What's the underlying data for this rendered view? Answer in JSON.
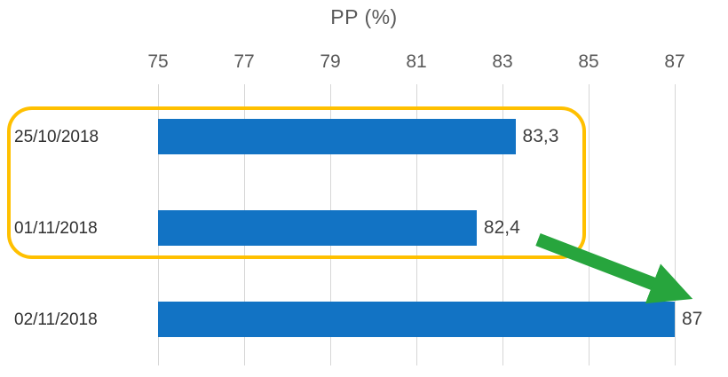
{
  "chart_data": {
    "type": "bar",
    "orientation": "horizontal",
    "title": "PP (%)",
    "categories": [
      "25/10/2018",
      "01/11/2018",
      "02/11/2018"
    ],
    "values": [
      83.3,
      82.4,
      87
    ],
    "value_labels": [
      "83,3",
      "82,4",
      "87"
    ],
    "xlim": [
      75,
      87
    ],
    "x_ticks": [
      75,
      77,
      79,
      81,
      83,
      85,
      87
    ],
    "grid": true,
    "legend": "none",
    "axis_position": "top",
    "bar_color": "#1273C4",
    "text_color": "#595959",
    "annotations": {
      "highlight_box": {
        "rows": [
          "25/10/2018",
          "01/11/2018"
        ],
        "color": "#FFC000"
      },
      "arrow": {
        "from_row": "01/11/2018",
        "to_row": "02/11/2018",
        "color": "#27A53D"
      }
    }
  }
}
